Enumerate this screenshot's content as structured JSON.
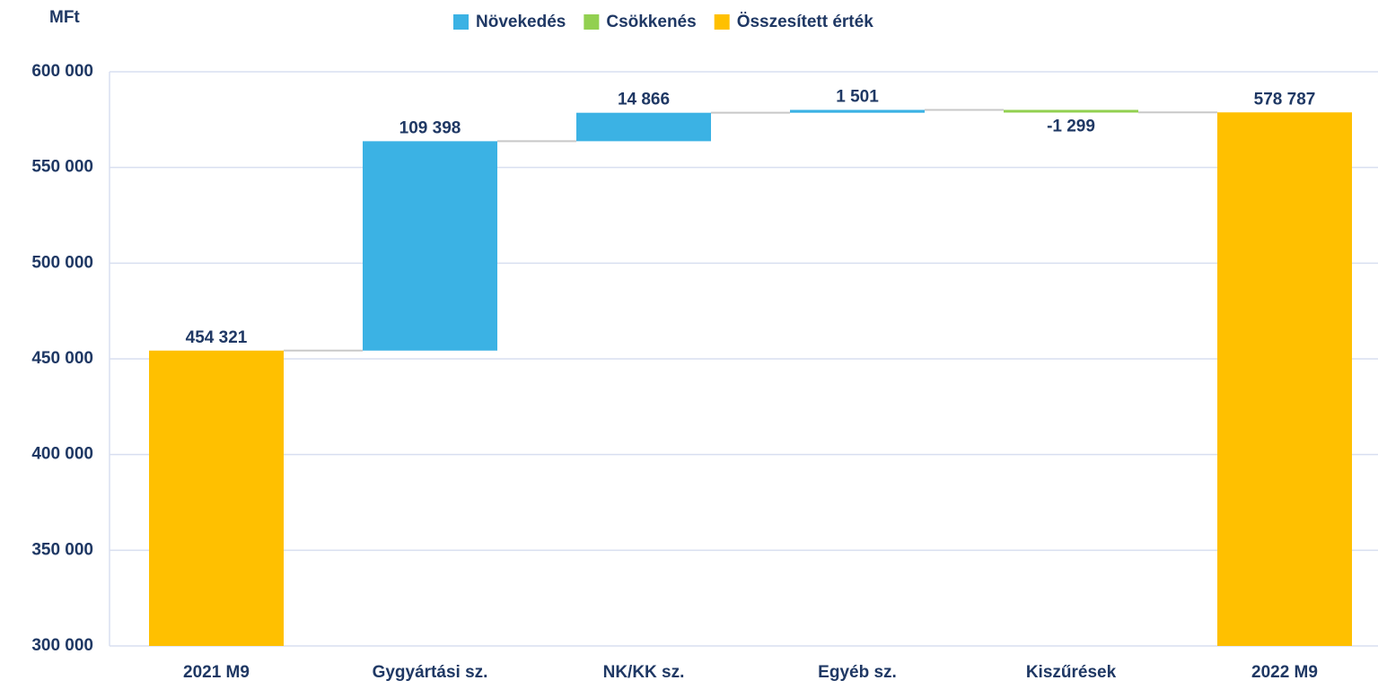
{
  "chart_data": {
    "type": "waterfall",
    "y_label": "MFt",
    "categories": [
      "2021 M9",
      "Gygyártási sz.",
      "NK/KK sz.",
      "Egyéb sz.",
      "Kiszűrések",
      "2022 M9"
    ],
    "series": [
      {
        "name": "Növekedés",
        "color": "#3bb2e4",
        "values": [
          null,
          109398,
          14866,
          1501,
          null,
          null
        ],
        "value_labels": [
          null,
          "109 398",
          "14 866",
          "1 501",
          null,
          null
        ]
      },
      {
        "name": "Csökkenés",
        "color": "#92d050",
        "values": [
          null,
          null,
          null,
          null,
          -1299,
          null
        ],
        "value_labels": [
          null,
          null,
          null,
          null,
          "-1 299",
          null
        ]
      },
      {
        "name": "Összesített érték",
        "color": "#ffc000",
        "values": [
          454321,
          null,
          null,
          null,
          null,
          578787
        ],
        "value_labels": [
          "454 321",
          null,
          null,
          null,
          null,
          "578 787"
        ]
      }
    ],
    "ylim": [
      300000,
      600000
    ],
    "yticks": [
      {
        "value": 300000,
        "label": "300 000"
      },
      {
        "value": 350000,
        "label": "350 000"
      },
      {
        "value": 400000,
        "label": "400 000"
      },
      {
        "value": 450000,
        "label": "450 000"
      },
      {
        "value": 500000,
        "label": "500 000"
      },
      {
        "value": 550000,
        "label": "550 000"
      },
      {
        "value": 600000,
        "label": "600 000"
      }
    ],
    "grid": true,
    "legend": "top"
  }
}
